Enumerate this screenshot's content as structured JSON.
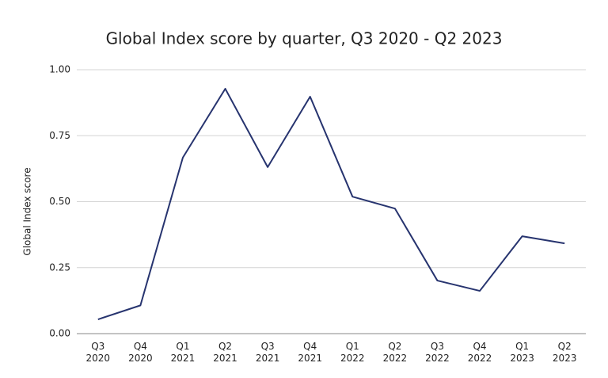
{
  "chart_data": {
    "type": "line",
    "title": "Global Index score by quarter, Q3 2020 - Q2 2023",
    "y_label": "Global Index score",
    "categories": [
      "Q3\n2020",
      "Q4\n2020",
      "Q1\n2021",
      "Q2\n2021",
      "Q3\n2021",
      "Q4\n2021",
      "Q1\n2022",
      "Q2\n2022",
      "Q3\n2022",
      "Q4\n2022",
      "Q1\n2023",
      "Q2\n2023"
    ],
    "series": [
      {
        "name": "Global Index score",
        "color": "#27346f",
        "values": [
          0.054,
          0.107,
          0.667,
          0.928,
          0.631,
          0.898,
          0.519,
          0.474,
          0.201,
          0.162,
          0.369,
          0.342
        ]
      }
    ],
    "ylim": [
      0,
      1
    ],
    "yticks": [
      {
        "value": 0,
        "label": "0.00"
      },
      {
        "value": 0.25,
        "label": "0.25"
      },
      {
        "value": 0.5,
        "label": "0.50"
      },
      {
        "value": 0.75,
        "label": "0.75"
      },
      {
        "value": 1,
        "label": "1.00"
      }
    ],
    "grid": true
  }
}
